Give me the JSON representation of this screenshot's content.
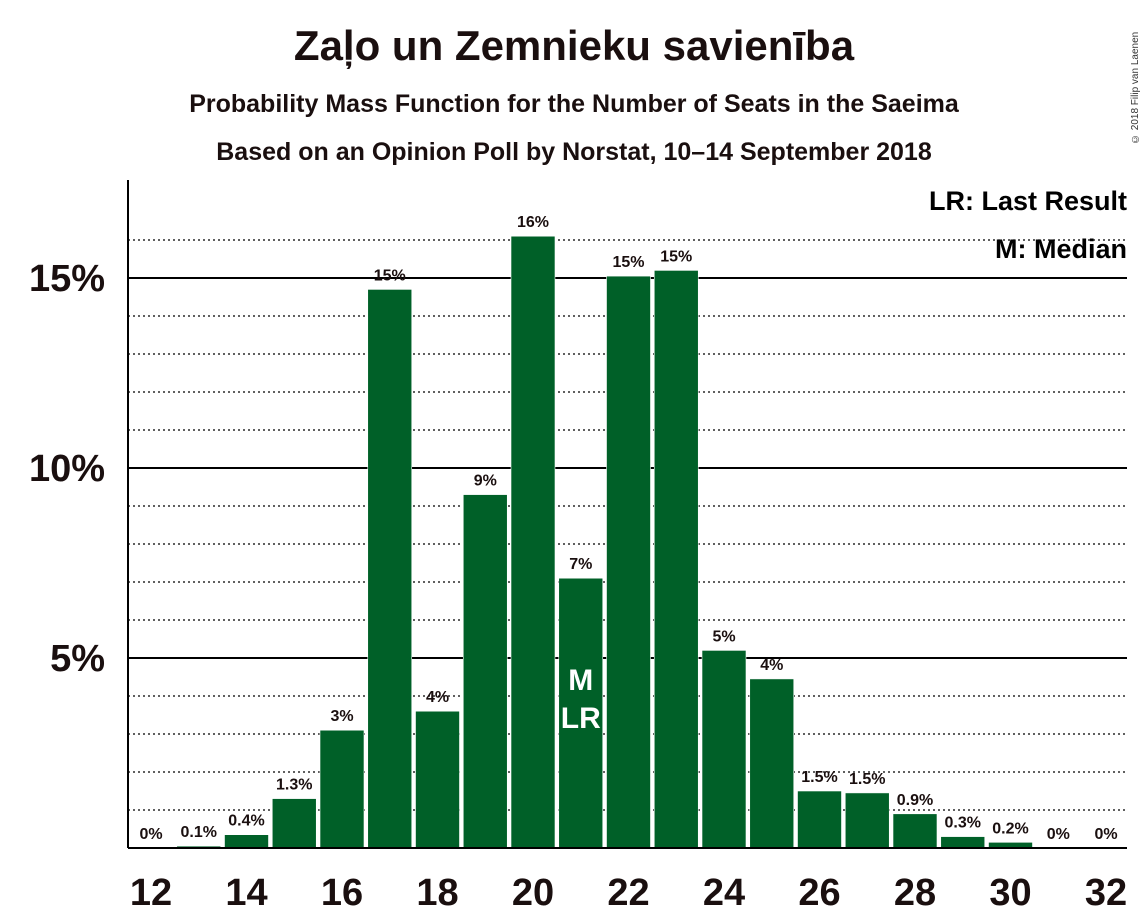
{
  "chart_data": {
    "type": "bar",
    "title": "Zaļo un Zemnieku savienība",
    "subtitle": "Probability Mass Function for the Number of Seats in the Saeima",
    "subtitle2": "Based on an Opinion Poll by Norstat, 10–14 September 2018",
    "copyright": "© 2018 Filip van Laenen",
    "x": [
      12,
      13,
      14,
      15,
      16,
      17,
      18,
      19,
      20,
      21,
      22,
      23,
      24,
      25,
      26,
      27,
      28,
      29,
      30,
      31,
      32
    ],
    "values": [
      0,
      0.05,
      0.35,
      1.3,
      3.1,
      14.7,
      3.6,
      9.3,
      16.1,
      7.1,
      15.05,
      15.2,
      5.2,
      4.45,
      1.5,
      1.45,
      0.9,
      0.3,
      0.15,
      0,
      0
    ],
    "labels": [
      "0%",
      "0.1%",
      "0.4%",
      "1.3%",
      "3%",
      "15%",
      "4%",
      "9%",
      "16%",
      "7%",
      "15%",
      "15%",
      "5%",
      "4%",
      "1.5%",
      "1.5%",
      "0.9%",
      "0.3%",
      "0.2%",
      "0%",
      "0%"
    ],
    "xticks": [
      12,
      14,
      16,
      18,
      20,
      22,
      24,
      26,
      28,
      30,
      32
    ],
    "yticks": [
      {
        "value": 5,
        "label": "5%"
      },
      {
        "value": 10,
        "label": "10%"
      },
      {
        "value": 15,
        "label": "15%"
      }
    ],
    "ylim": [
      0,
      17.5
    ],
    "bar_color": "#006028",
    "grid": true,
    "median_seat": 21,
    "median_marker": "M",
    "last_result_seat": 21,
    "last_result_marker": "LR",
    "legend": {
      "placement": "top-right",
      "entries": [
        "LR: Last Result",
        "M: Median"
      ]
    }
  }
}
